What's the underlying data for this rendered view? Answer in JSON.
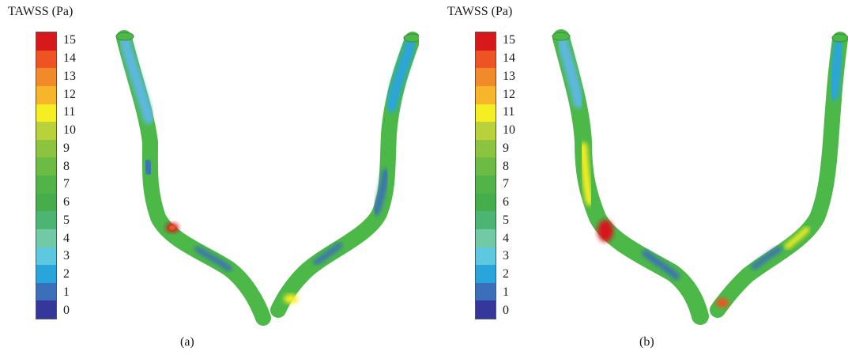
{
  "panels": [
    {
      "label": "(a)",
      "colorbar_title": "TAWSS (Pa)",
      "scale": {
        "ticks": [
          "15",
          "14",
          "13",
          "12",
          "11",
          "10",
          "9",
          "8",
          "7",
          "6",
          "5",
          "4",
          "3",
          "2",
          "1",
          "0"
        ],
        "colors": [
          "#d7191c",
          "#ee5324",
          "#f08a2a",
          "#f7b52c",
          "#f5ee22",
          "#b9d23c",
          "#8cc43f",
          "#6bbb45",
          "#52b448",
          "#45ad4c",
          "#4cb574",
          "#71c9a6",
          "#5dc8e0",
          "#2aa5dc",
          "#3b6fba",
          "#35379a"
        ]
      }
    },
    {
      "label": "(b)",
      "colorbar_title": "TAWSS (Pa)",
      "scale": {
        "ticks": [
          "15",
          "14",
          "13",
          "12",
          "11",
          "10",
          "9",
          "8",
          "7",
          "6",
          "5",
          "4",
          "3",
          "2",
          "1",
          "0"
        ],
        "colors": [
          "#d7191c",
          "#ee5324",
          "#f08a2a",
          "#f7b52c",
          "#f5ee22",
          "#b9d23c",
          "#8cc43f",
          "#6bbb45",
          "#52b448",
          "#45ad4c",
          "#4cb574",
          "#71c9a6",
          "#5dc8e0",
          "#2aa5dc",
          "#3b6fba",
          "#35379a"
        ]
      }
    }
  ],
  "colors": {
    "vessel_base": "#4cb848",
    "low": "#3b6fba",
    "mid_low": "#5db8e0",
    "high": "#f5ee22",
    "peak": "#d7191c"
  }
}
